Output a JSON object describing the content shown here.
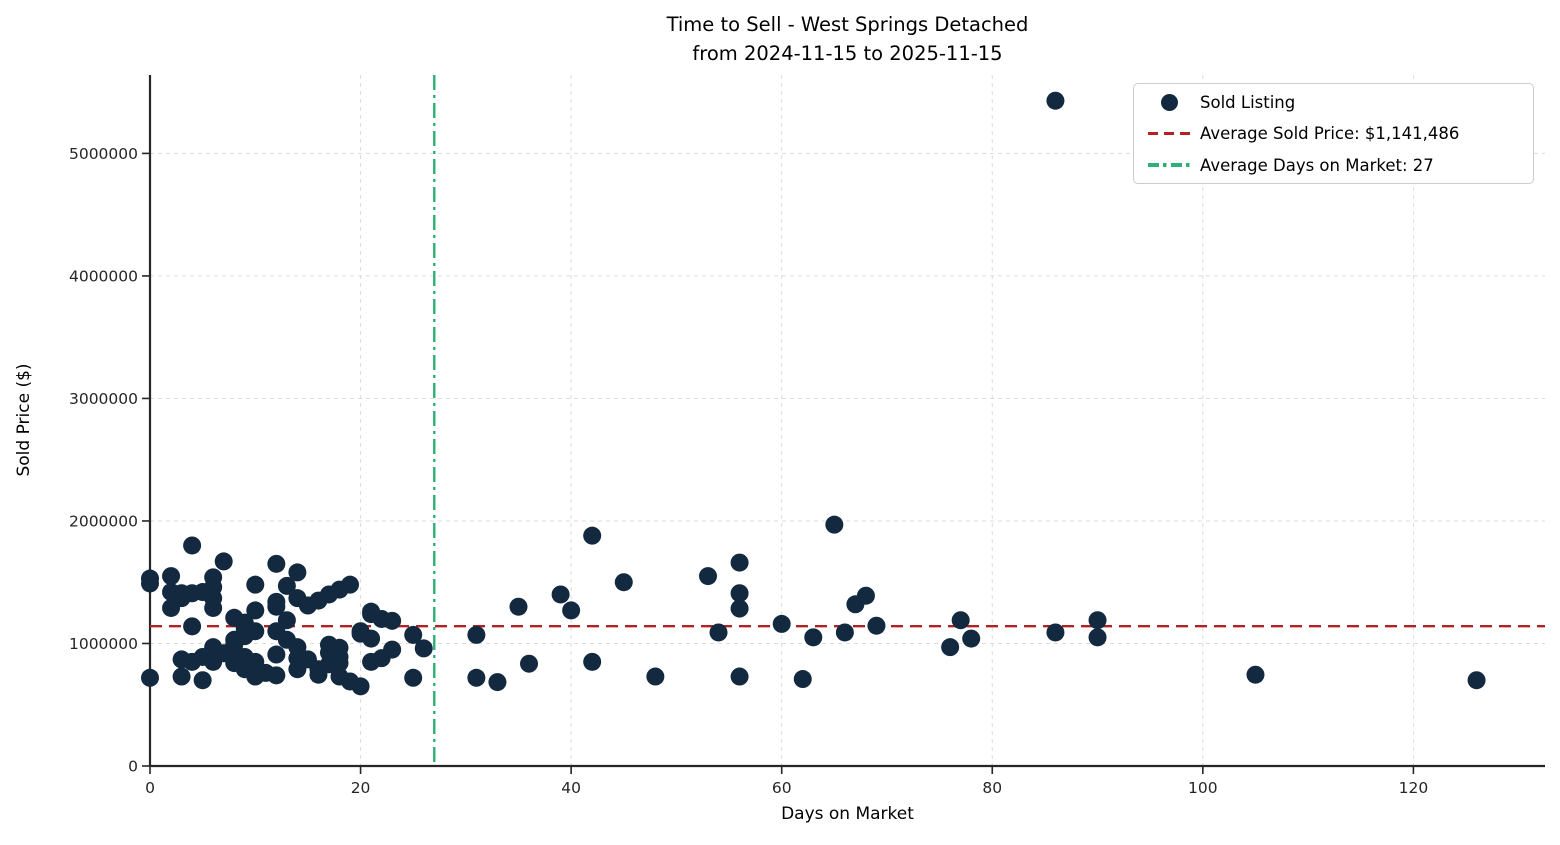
{
  "title": {
    "line1": "Time to Sell - West Springs Detached",
    "line2": "from 2024-11-15 to 2025-11-15"
  },
  "legend": {
    "items": [
      {
        "label": "Sold Listing",
        "marker": "dot",
        "color": "#12293f"
      },
      {
        "label": "Average Sold Price: $1,141,486",
        "marker": "dashed-line",
        "color": "#b22222"
      },
      {
        "label": "Average Days on Market: 27",
        "marker": "dashdot-line",
        "color": "#2fb077"
      }
    ]
  },
  "colors": {
    "point": "#12293f",
    "avg_price_line": "#b22222",
    "avg_dom_line": "#2fb077",
    "gridline": "#dcdcdc",
    "spine": "#262626",
    "tick_label": "#262626"
  },
  "chart_data": {
    "type": "scatter",
    "title": "Time to Sell - West Springs Detached\nfrom 2024-11-15 to 2025-11-15",
    "xlabel": "Days on Market",
    "ylabel": "Sold Price ($)",
    "xlim": [
      0,
      132.5
    ],
    "ylim": [
      0,
      5640000
    ],
    "grid": true,
    "legend_position": "upper right",
    "x_ticks": [
      0,
      20,
      40,
      60,
      80,
      100,
      120
    ],
    "y_ticks": [
      0,
      1000000,
      2000000,
      3000000,
      4000000,
      5000000
    ],
    "x_tick_labels": [
      "0",
      "20",
      "40",
      "60",
      "80",
      "100",
      "120"
    ],
    "y_tick_labels": [
      "0",
      "1000000",
      "2000000",
      "3000000",
      "4000000",
      "5000000"
    ],
    "series": [
      {
        "name": "Sold Listing",
        "marker": "circle",
        "color": "#12293f",
        "points": [
          [
            0,
            1530000
          ],
          [
            0,
            1490000
          ],
          [
            0,
            720000
          ],
          [
            2,
            1550000
          ],
          [
            2,
            1420000
          ],
          [
            2,
            1290000
          ],
          [
            3,
            1410000
          ],
          [
            3,
            1370000
          ],
          [
            3,
            870000
          ],
          [
            3,
            730000
          ],
          [
            4,
            1800000
          ],
          [
            4,
            1410000
          ],
          [
            4,
            1140000
          ],
          [
            4,
            850000
          ],
          [
            5,
            1420000
          ],
          [
            5,
            890000
          ],
          [
            5,
            700000
          ],
          [
            6,
            1540000
          ],
          [
            6,
            1460000
          ],
          [
            6,
            1370000
          ],
          [
            6,
            1290000
          ],
          [
            6,
            970000
          ],
          [
            6,
            850000
          ],
          [
            7,
            1670000
          ],
          [
            7,
            920000
          ],
          [
            8,
            1210000
          ],
          [
            8,
            1030000
          ],
          [
            8,
            990000
          ],
          [
            8,
            940000
          ],
          [
            8,
            840000
          ],
          [
            9,
            1170000
          ],
          [
            9,
            1120000
          ],
          [
            9,
            1060000
          ],
          [
            9,
            890000
          ],
          [
            9,
            790000
          ],
          [
            10,
            1480000
          ],
          [
            10,
            1270000
          ],
          [
            10,
            1100000
          ],
          [
            10,
            850000
          ],
          [
            10,
            730000
          ],
          [
            11,
            760000
          ],
          [
            12,
            1650000
          ],
          [
            12,
            1340000
          ],
          [
            12,
            1300000
          ],
          [
            12,
            1100000
          ],
          [
            12,
            910000
          ],
          [
            12,
            740000
          ],
          [
            13,
            1470000
          ],
          [
            13,
            1190000
          ],
          [
            13,
            1030000
          ],
          [
            14,
            1580000
          ],
          [
            14,
            1370000
          ],
          [
            14,
            970000
          ],
          [
            14,
            880000
          ],
          [
            14,
            790000
          ],
          [
            15,
            1310000
          ],
          [
            15,
            870000
          ],
          [
            16,
            1350000
          ],
          [
            16,
            790000
          ],
          [
            16,
            745000
          ],
          [
            17,
            1400000
          ],
          [
            17,
            990000
          ],
          [
            17,
            925000
          ],
          [
            17,
            830000
          ],
          [
            18,
            1440000
          ],
          [
            18,
            965000
          ],
          [
            18,
            890000
          ],
          [
            18,
            840000
          ],
          [
            18,
            730000
          ],
          [
            19,
            1480000
          ],
          [
            19,
            690000
          ],
          [
            20,
            1100000
          ],
          [
            20,
            1080000
          ],
          [
            20,
            650000
          ],
          [
            21,
            1260000
          ],
          [
            21,
            1240000
          ],
          [
            21,
            1040000
          ],
          [
            21,
            850000
          ],
          [
            22,
            1200000
          ],
          [
            22,
            880000
          ],
          [
            23,
            1185000
          ],
          [
            23,
            950000
          ],
          [
            25,
            1070000
          ],
          [
            25,
            720000
          ],
          [
            26,
            960000
          ],
          [
            31,
            1070000
          ],
          [
            31,
            720000
          ],
          [
            33,
            685000
          ],
          [
            35,
            1300000
          ],
          [
            36,
            835000
          ],
          [
            39,
            1400000
          ],
          [
            40,
            1270000
          ],
          [
            42,
            1880000
          ],
          [
            42,
            850000
          ],
          [
            45,
            1500000
          ],
          [
            48,
            730000
          ],
          [
            53,
            1550000
          ],
          [
            54,
            1090000
          ],
          [
            56,
            1660000
          ],
          [
            56,
            1410000
          ],
          [
            56,
            1285000
          ],
          [
            56,
            730000
          ],
          [
            60,
            1160000
          ],
          [
            62,
            710000
          ],
          [
            63,
            1050000
          ],
          [
            65,
            1970000
          ],
          [
            66,
            1090000
          ],
          [
            67,
            1320000
          ],
          [
            68,
            1390000
          ],
          [
            69,
            1145000
          ],
          [
            76,
            970000
          ],
          [
            77,
            1190000
          ],
          [
            78,
            1040000
          ],
          [
            86,
            5430000
          ],
          [
            86,
            1090000
          ],
          [
            90,
            1190000
          ],
          [
            90,
            1050000
          ],
          [
            105,
            745000
          ],
          [
            126,
            700000
          ]
        ]
      }
    ],
    "reference_lines": [
      {
        "name": "average-sold-price",
        "axis": "y",
        "value": 1141486,
        "style": "dashed",
        "color": "#b22222",
        "label": "Average Sold Price: $1,141,486"
      },
      {
        "name": "average-days-on-market",
        "axis": "x",
        "value": 27,
        "style": "dashdot",
        "color": "#2fb077",
        "label": "Average Days on Market: 27"
      }
    ]
  }
}
